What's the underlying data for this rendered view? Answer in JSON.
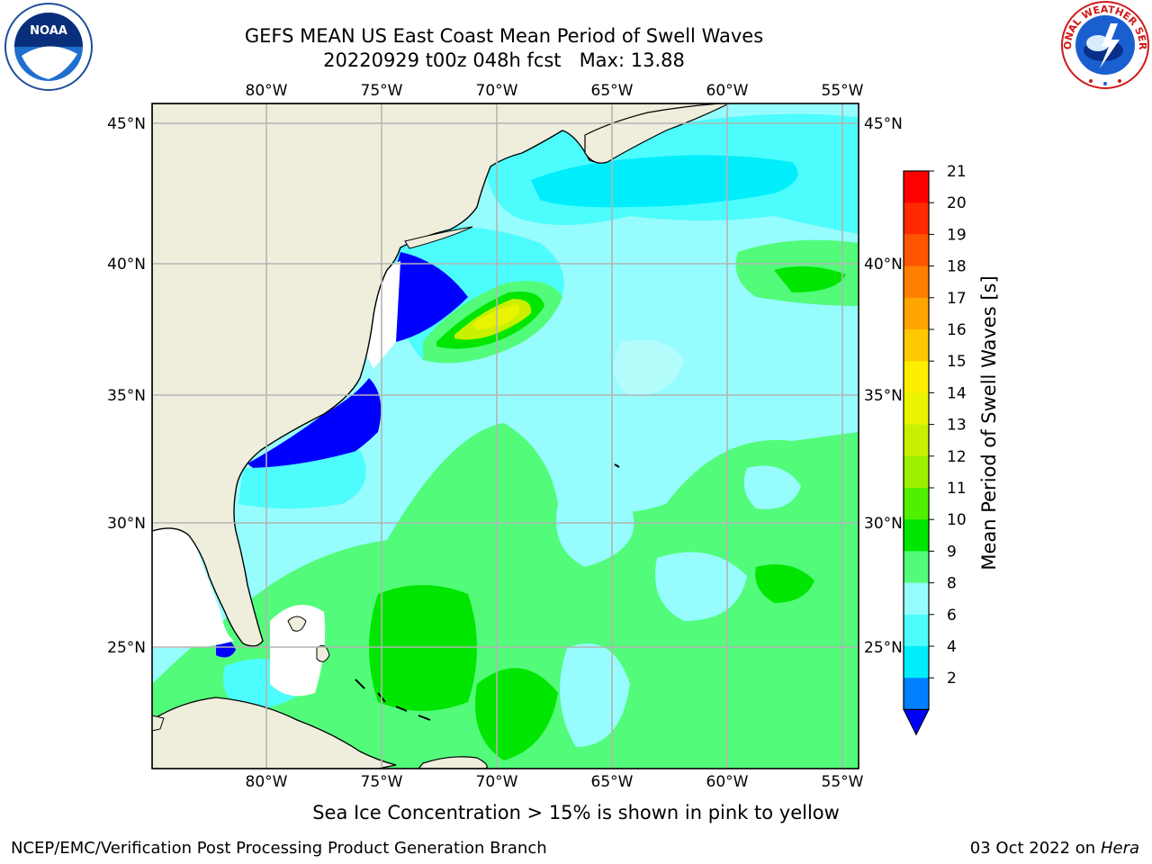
{
  "title": {
    "line1": "GEFS MEAN US East Coast Mean Period of Swell Waves",
    "line2": "20220929 t00z 048h fcst   Max: 13.88"
  },
  "map": {
    "lon_labels": [
      "80°W",
      "75°W",
      "70°W",
      "65°W",
      "60°W",
      "55°W"
    ],
    "lat_labels": [
      "45°N",
      "40°N",
      "35°N",
      "30°N",
      "25°N"
    ],
    "colors": {
      "land": "#efeedc",
      "ocean_base": "#97fcfd"
    }
  },
  "colorbar": {
    "label": "Mean Period of Swell Waves [s]",
    "ticks": [
      "21",
      "20",
      "19",
      "18",
      "17",
      "16",
      "15",
      "14",
      "13",
      "12",
      "11",
      "10",
      "9",
      "8",
      "6",
      "4",
      "2"
    ],
    "colors": [
      "#ff0000",
      "#ff2a00",
      "#ff5500",
      "#ff7f00",
      "#ffa500",
      "#ffc800",
      "#ffee00",
      "#eaf400",
      "#c8f000",
      "#9cf000",
      "#50f000",
      "#00e600",
      "#52fc7a",
      "#97fcfd",
      "#4dfcfc",
      "#00eefc",
      "#0080ff"
    ],
    "extend_color": "#0000ff"
  },
  "logos": {
    "noaa": "NOAA",
    "nws": "NATIONAL WEATHER SERVICE"
  },
  "footer": {
    "note": "Sea Ice Concentration > 15% is shown in pink to yellow",
    "credit": "NCEP/EMC/Verification Post Processing Product Generation Branch",
    "date": "03 Oct 2022 on ",
    "machine": "Hera"
  }
}
